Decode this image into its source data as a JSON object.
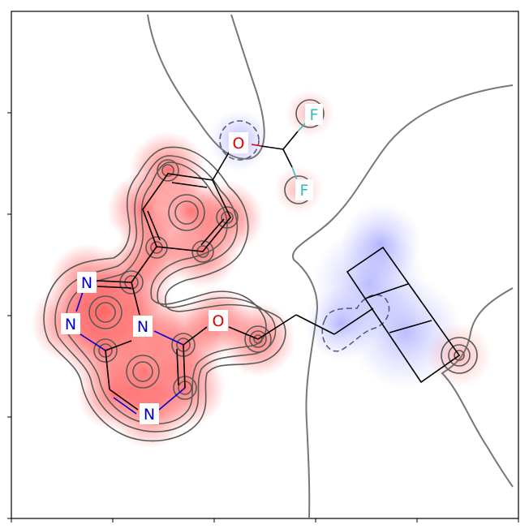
{
  "atoms": [
    {
      "id": "n1",
      "label": "N",
      "element": "N",
      "color": "#0000cc"
    },
    {
      "id": "n2",
      "label": "N",
      "element": "N",
      "color": "#0000cc"
    },
    {
      "id": "n3",
      "label": "N",
      "element": "N",
      "color": "#0000cc"
    },
    {
      "id": "n4",
      "label": "N",
      "element": "N",
      "color": "#0000cc"
    },
    {
      "id": "o1",
      "label": "O",
      "element": "O",
      "color": "#dd0000"
    },
    {
      "id": "o2",
      "label": "O",
      "element": "O",
      "color": "#dd0000"
    },
    {
      "id": "f1",
      "label": "F",
      "element": "F",
      "color": "#33bbbb"
    },
    {
      "id": "f2",
      "label": "F",
      "element": "F",
      "color": "#33bbbb"
    }
  ],
  "colors": {
    "positive": "#ff0000",
    "negative": "#0000ff",
    "contour": "#6e6e6e",
    "bond": "#000000",
    "nitrogen_bond": "#0000cc",
    "oxygen_bond": "#dd0000",
    "fluorine_bond": "#33bbbb"
  }
}
